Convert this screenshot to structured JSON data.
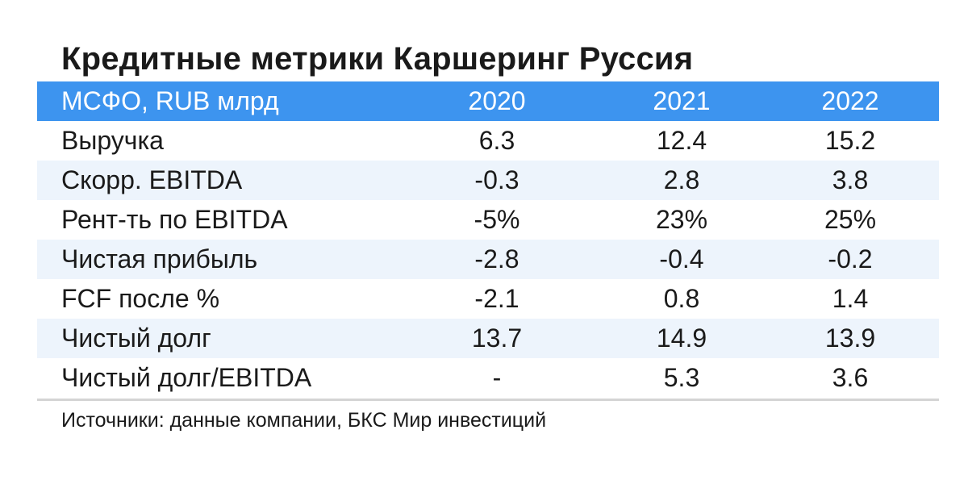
{
  "title": "Кредитные метрики Каршеринг Руссия",
  "table": {
    "header": {
      "label": "МСФО, RUB млрд",
      "years": [
        "2020",
        "2021",
        "2022"
      ]
    },
    "rows": [
      {
        "label": "Выручка",
        "values": [
          "6.3",
          "12.4",
          "15.2"
        ]
      },
      {
        "label": "Скорр. EBITDA",
        "values": [
          "-0.3",
          "2.8",
          "3.8"
        ]
      },
      {
        "label": "Рент-ть по EBITDA",
        "values": [
          "-5%",
          "23%",
          "25%"
        ]
      },
      {
        "label": "Чистая прибыль",
        "values": [
          "-2.8",
          "-0.4",
          "-0.2"
        ]
      },
      {
        "label": "FCF после %",
        "values": [
          "-2.1",
          "0.8",
          "1.4"
        ]
      },
      {
        "label": "Чистый долг",
        "values": [
          "13.7",
          "14.9",
          "13.9"
        ]
      },
      {
        "label": "Чистый долг/EBITDA",
        "values": [
          "-",
          "5.3",
          "3.6"
        ]
      }
    ]
  },
  "source": "Источники: данные компании, БКС Мир инвестиций",
  "colors": {
    "header_bg": "#3d94ef",
    "alt_row_bg": "#edf4fc",
    "text": "#1a1a1a"
  }
}
